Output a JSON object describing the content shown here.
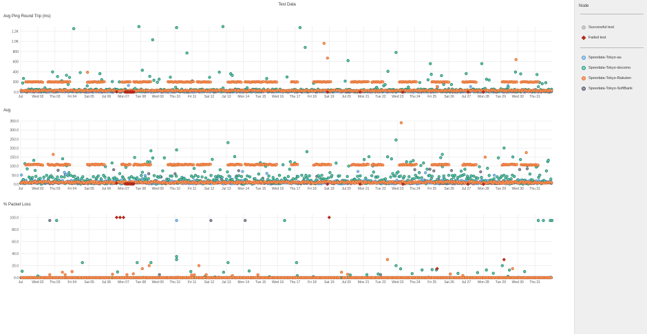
{
  "page": {
    "title": "Test Data"
  },
  "sidebar": {
    "header": "Node",
    "status_items": [
      {
        "label": "Successful test",
        "color": "#bbbbbb",
        "symbol": "circle"
      },
      {
        "label": "Failed test",
        "color": "#b22a1b",
        "symbol": "diamond"
      }
    ],
    "series_items": [
      {
        "label": "Speedata-Tokyo-au",
        "color": "#4f93d3"
      },
      {
        "label": "Speedata-Tokyo-docomo",
        "color": "#26a98b"
      },
      {
        "label": "Speedata-Tokyo-Rakuten",
        "color": "#ef7f41"
      },
      {
        "label": "Speedata-Tokyo-SoftBank",
        "color": "#5e5e6e"
      }
    ]
  },
  "colors": {
    "au": "#4f93d3",
    "docomo": "#26a98b",
    "rakuten": "#ef7f41",
    "softbank": "#5e5e6e",
    "failed": "#b22a1b",
    "grid": "#e8e8e8",
    "axis": "#aaaaaa"
  },
  "chart_data": [
    {
      "type": "scatter",
      "title": "Avg Ping Round Trip (ms)",
      "xlabel": "",
      "ylabel": "",
      "x_ticks": [
        "Jul",
        "Wed 02",
        "Thu 03",
        "Fri 04",
        "Sat 05",
        "Jul 06",
        "Mon 07",
        "Tue 08",
        "Wed 09",
        "Thu 10",
        "Fri 11",
        "Sat 12",
        "Jul 13",
        "Mon 14",
        "Tue 15",
        "Wed 16",
        "Thu 17",
        "Fri 18",
        "Sat 19",
        "Jul 20",
        "Mon 21",
        "Tue 22",
        "Wed 23",
        "Thu 24",
        "Fri 25",
        "Sat 26",
        "Jul 27",
        "Mon 28",
        "Tue 29",
        "Wed 30",
        "Thu 31"
      ],
      "y_ticks": [
        "1.2K",
        "1.0K",
        "800",
        "600",
        "400",
        "200",
        "0.0"
      ],
      "ylim": [
        0,
        1300
      ],
      "grid": true,
      "series": [
        {
          "name": "Speedata-Tokyo-au",
          "baseline": 20,
          "spread": 12,
          "outlier_rate": 0.02,
          "outlier_max": 120
        },
        {
          "name": "Speedata-Tokyo-docomo",
          "baseline": 35,
          "spread": 25,
          "outlier_rate": 0.14,
          "outlier_max": 380,
          "outliers": [
            [
              3.1,
              1250
            ],
            [
              6.9,
              1290
            ],
            [
              7.7,
              1030
            ],
            [
              9.1,
              1270
            ],
            [
              9.7,
              770
            ],
            [
              11.8,
              1290
            ],
            [
              16.3,
              1270
            ],
            [
              16.6,
              880
            ],
            [
              21.9,
              780
            ],
            [
              7.1,
              430
            ],
            [
              19.1,
              620
            ],
            [
              23.9,
              560
            ],
            [
              26.9,
              560
            ]
          ]
        },
        {
          "name": "Speedata-Tokyo-Rakuten",
          "baseline": 30,
          "spread": 10,
          "cluster_value": 200,
          "clusters": [
            [
              0.3,
              1.3
            ],
            [
              1.6,
              2.3
            ],
            [
              2.3,
              2.9
            ],
            [
              3.9,
              4.9
            ],
            [
              5.9,
              6.4
            ],
            [
              6.6,
              7.6
            ],
            [
              8.6,
              9.2
            ],
            [
              9.1,
              10.1
            ],
            [
              10.3,
              11.1
            ],
            [
              12.1,
              12.9
            ],
            [
              13.1,
              14.2
            ],
            [
              14.3,
              15.0
            ],
            [
              15.8,
              16.2
            ],
            [
              17.1,
              18.1
            ],
            [
              19.3,
              20.3
            ],
            [
              20.5,
              21.2
            ],
            [
              22.1,
              23.1
            ],
            [
              24.0,
              25.0
            ],
            [
              25.8,
              26.6
            ],
            [
              28.1,
              29.0
            ],
            [
              29.2,
              30.2
            ]
          ],
          "outliers": [
            [
              3.9,
              390
            ],
            [
              17.7,
              960
            ],
            [
              17.9,
              670
            ],
            [
              24.3,
              110
            ],
            [
              28.9,
              640
            ]
          ]
        },
        {
          "name": "Speedata-Tokyo-SoftBank",
          "baseline": 8,
          "spread": 6,
          "outlier_rate": 0.01,
          "outlier_max": 60
        }
      ],
      "failed_tests": [
        [
          5.6,
          5.1
        ],
        [
          6.1,
          6.6
        ],
        [
          17.9,
          0
        ],
        [
          19.8,
          0
        ],
        [
          22.3,
          0
        ],
        [
          26.1,
          0
        ],
        [
          27.0,
          0
        ]
      ],
      "legend": "right"
    },
    {
      "type": "scatter",
      "title": "Avg",
      "xlabel": "",
      "ylabel": "",
      "x_ticks": [
        "Jul",
        "Wed 02",
        "Thu 03",
        "Fri 04",
        "Sat 05",
        "Jul 06",
        "Mon 07",
        "Tue 08",
        "Wed 09",
        "Thu 10",
        "Fri 11",
        "Sat 12",
        "Jul 13",
        "Mon 14",
        "Tue 15",
        "Wed 16",
        "Thu 17",
        "Fri 18",
        "Sat 19",
        "Jul 20",
        "Mon 21",
        "Tue 22",
        "Wed 23",
        "Thu 24",
        "Fri 25",
        "Sat 26",
        "Jul 27",
        "Mon 28",
        "Tue 29",
        "Wed 30",
        "Thu 31"
      ],
      "y_ticks": [
        "350.0",
        "300.0",
        "250.0",
        "200.0",
        "150.0",
        "100.0",
        "50.0",
        "0.0"
      ],
      "ylim": [
        0,
        350
      ],
      "grid": true,
      "series": [
        {
          "name": "Speedata-Tokyo-au",
          "baseline": 12,
          "spread": 10,
          "outlier_rate": 0.04,
          "outlier_max": 60
        },
        {
          "name": "Speedata-Tokyo-docomo",
          "baseline": 25,
          "spread": 25,
          "outlier_rate": 0.2,
          "outlier_max": 130,
          "outliers": [
            [
              12.1,
              230
            ],
            [
              21.9,
              245
            ],
            [
              28.2,
              200
            ],
            [
              9.1,
              190
            ],
            [
              7.6,
              185
            ],
            [
              16.7,
              180
            ],
            [
              24.6,
              165
            ]
          ]
        },
        {
          "name": "Speedata-Tokyo-Rakuten",
          "baseline": 10,
          "spread": 5,
          "cluster_value": 108,
          "clusters": [
            [
              0.3,
              1.3
            ],
            [
              1.6,
              2.3
            ],
            [
              2.3,
              2.9
            ],
            [
              3.9,
              4.9
            ],
            [
              5.9,
              6.4
            ],
            [
              6.6,
              7.6
            ],
            [
              8.6,
              9.2
            ],
            [
              9.1,
              10.1
            ],
            [
              10.3,
              11.1
            ],
            [
              12.1,
              12.9
            ],
            [
              13.1,
              14.2
            ],
            [
              14.3,
              15.0
            ],
            [
              15.8,
              16.2
            ],
            [
              17.1,
              18.1
            ],
            [
              19.3,
              20.3
            ],
            [
              20.5,
              21.2
            ],
            [
              22.1,
              23.1
            ],
            [
              24.0,
              25.0
            ],
            [
              25.8,
              26.6
            ],
            [
              28.1,
              29.0
            ],
            [
              29.2,
              30.2
            ]
          ],
          "outliers": [
            [
              22.2,
              340
            ],
            [
              1.9,
              165
            ],
            [
              27.1,
              150
            ],
            [
              29.5,
              175
            ]
          ]
        },
        {
          "name": "Speedata-Tokyo-SoftBank",
          "baseline": 8,
          "spread": 6,
          "outlier_rate": 0.03,
          "outlier_max": 80
        }
      ],
      "failed_tests": [
        [
          5.6,
          5.1
        ],
        [
          6.1,
          6.6
        ],
        [
          17.9,
          0
        ],
        [
          19.8,
          0
        ],
        [
          22.3,
          0
        ],
        [
          26.1,
          0
        ],
        [
          27.0,
          0
        ]
      ],
      "legend": "right"
    },
    {
      "type": "scatter",
      "title": "% Packet Loss",
      "xlabel": "",
      "ylabel": "",
      "x_ticks": [
        "Jul",
        "Wed 02",
        "Thu 03",
        "Fri 04",
        "Sat 05",
        "Jul 06",
        "Mon 07",
        "Tue 08",
        "Wed 09",
        "Thu 10",
        "Fri 11",
        "Sat 12",
        "Jul 13",
        "Mon 14",
        "Tue 15",
        "Wed 16",
        "Thu 17",
        "Fri 18",
        "Sat 19",
        "Jul 20",
        "Mon 21",
        "Tue 22",
        "Wed 23",
        "Thu 24",
        "Fri 25",
        "Sat 26",
        "Jul 27",
        "Mon 28",
        "Tue 29",
        "Wed 30",
        "Thu 31"
      ],
      "y_ticks": [
        "100.0",
        "80.0",
        "60.0",
        "40.0",
        "20.0",
        "0.0"
      ],
      "ylim": [
        0,
        105
      ],
      "grid": true,
      "series": [
        {
          "name": "Speedata-Tokyo-au",
          "baseline": 0,
          "spread": 0,
          "outliers": [
            [
              9.1,
              95
            ]
          ]
        },
        {
          "name": "Speedata-Tokyo-docomo",
          "baseline": 0,
          "spread": 0,
          "outlier_rate": 0.06,
          "outlier_max": 15,
          "outliers": [
            [
              2.1,
              95
            ],
            [
              3.6,
              25
            ],
            [
              6.8,
              25
            ],
            [
              7.6,
              25
            ],
            [
              9.1,
              35
            ],
            [
              9.1,
              30
            ],
            [
              12.1,
              25
            ],
            [
              15.4,
              95
            ],
            [
              16.1,
              25
            ],
            [
              21.9,
              20
            ],
            [
              28.1,
              20
            ],
            [
              29.4,
              10
            ],
            [
              30.2,
              95
            ],
            [
              30.5,
              95
            ],
            [
              30.9,
              95
            ],
            [
              31.0,
              95
            ],
            [
              20.2,
              5
            ]
          ]
        },
        {
          "name": "Speedata-Tokyo-Rakuten",
          "baseline": 0,
          "spread": 0,
          "outlier_rate": 0.03,
          "outlier_max": 10,
          "outliers": [
            [
              1.7,
              5
            ],
            [
              2.6,
              5
            ],
            [
              3.0,
              10
            ],
            [
              6.2,
              5
            ],
            [
              7.1,
              15
            ],
            [
              7.5,
              20
            ],
            [
              10.4,
              20
            ],
            [
              21.4,
              30
            ],
            [
              28.7,
              15
            ]
          ]
        },
        {
          "name": "Speedata-Tokyo-SoftBank",
          "baseline": 0,
          "spread": 0,
          "outliers": [
            [
              1.7,
              95
            ],
            [
              8.1,
              5
            ],
            [
              11.1,
              95
            ],
            [
              13.1,
              95
            ],
            [
              21.0,
              5
            ]
          ]
        }
      ],
      "failed_tests": [
        [
          5.6,
          100
        ],
        [
          5.8,
          100
        ],
        [
          6.0,
          100
        ],
        [
          18.0,
          100
        ],
        [
          24.3,
          15
        ],
        [
          28.2,
          30
        ]
      ],
      "legend": "right"
    }
  ]
}
